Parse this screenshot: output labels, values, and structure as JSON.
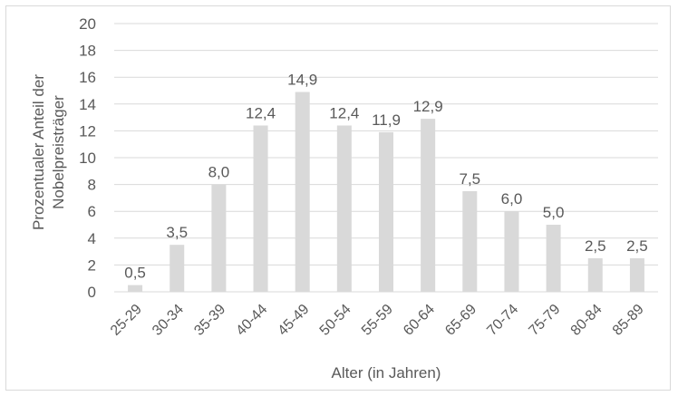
{
  "chart_data": {
    "type": "bar",
    "categories": [
      "25-29",
      "30-34",
      "35-39",
      "40-44",
      "45-49",
      "50-54",
      "55-59",
      "60-64",
      "65-69",
      "70-74",
      "75-79",
      "80-84",
      "85-89"
    ],
    "values": [
      0.5,
      3.5,
      8.0,
      12.4,
      14.9,
      12.4,
      11.9,
      12.9,
      7.5,
      6.0,
      5.0,
      2.5,
      2.5
    ],
    "data_labels": [
      "0,5",
      "3,5",
      "8,0",
      "12,4",
      "14,9",
      "12,4",
      "11,9",
      "12,9",
      "7,5",
      "6,0",
      "5,0",
      "2,5",
      "2,5"
    ],
    "yticks": [
      "0",
      "2",
      "4",
      "6",
      "8",
      "10",
      "12",
      "14",
      "16",
      "18",
      "20"
    ],
    "ylim": [
      0,
      20
    ],
    "xlabel": "Alter (in Jahren)",
    "ylabel_lines": [
      "Prozentualer Anteil der",
      "Nobelpreisträger"
    ],
    "grid": true,
    "legend": "none",
    "colors": {
      "bar": "#d9d9d9",
      "grid": "#d9d9d9",
      "text": "#595959"
    }
  }
}
